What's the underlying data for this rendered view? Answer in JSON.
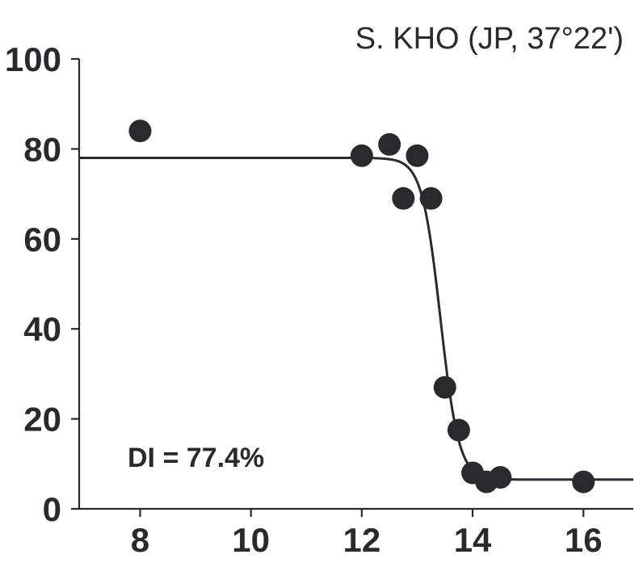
{
  "chart_data": {
    "type": "scatter",
    "title": "S. KHO (JP, 37°22')",
    "annotation": "DI = 77.4%",
    "xlabel": "",
    "ylabel": "",
    "xlim": [
      6.9,
      16.9
    ],
    "ylim": [
      0,
      100
    ],
    "x_ticks": [
      8,
      10,
      12,
      14,
      16
    ],
    "y_ticks": [
      0,
      20,
      40,
      60,
      80,
      100
    ],
    "grid": false,
    "color": "#2a2a2e",
    "points": [
      {
        "x": 8.0,
        "y": 84.0
      },
      {
        "x": 12.0,
        "y": 78.5
      },
      {
        "x": 12.5,
        "y": 81.0
      },
      {
        "x": 12.75,
        "y": 69.0
      },
      {
        "x": 13.0,
        "y": 78.5
      },
      {
        "x": 13.25,
        "y": 69.0
      },
      {
        "x": 13.5,
        "y": 27.0
      },
      {
        "x": 13.75,
        "y": 17.5
      },
      {
        "x": 14.0,
        "y": 8.0
      },
      {
        "x": 14.25,
        "y": 6.0
      },
      {
        "x": 14.5,
        "y": 7.0
      },
      {
        "x": 16.0,
        "y": 6.0
      }
    ],
    "fit_curve": {
      "type": "logistic",
      "upper": 78.0,
      "lower": 6.5,
      "midpoint": 13.42,
      "slope": 6.0
    }
  }
}
